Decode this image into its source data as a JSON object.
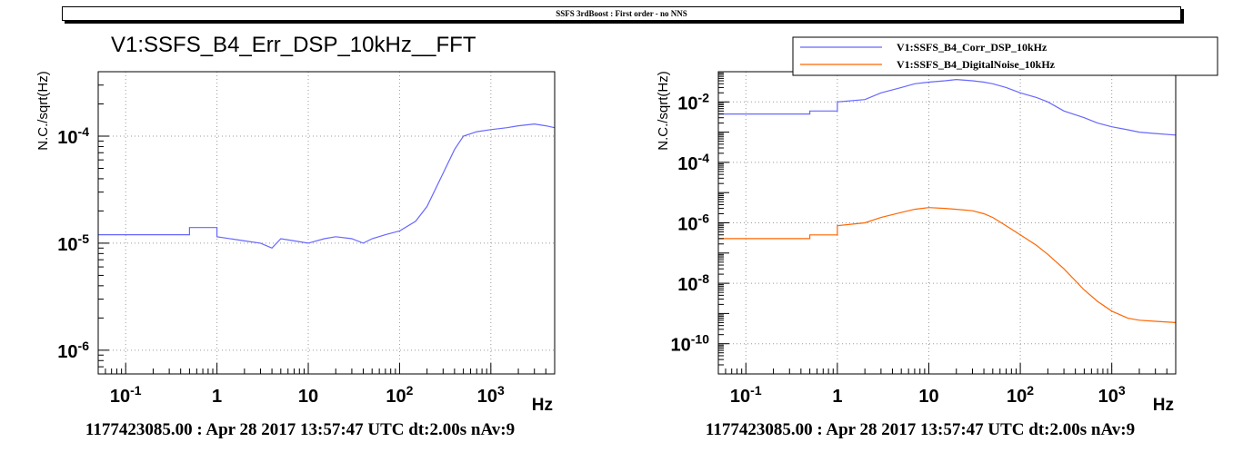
{
  "page": {
    "banner": "SSFS 3rdBoost : First order - no NNS"
  },
  "panels": [
    {
      "title": "V1:SSFS_B4_Err_DSP_10kHz__FFT",
      "footer": "1177423085.00 : Apr 28 2017 13:57:47 UTC dt:2.00s nAv:9"
    },
    {
      "title": "",
      "footer": "1177423085.00 : Apr 28 2017 13:57:47 UTC dt:2.00s nAv:9"
    }
  ],
  "colors": {
    "blue": "#6767ff",
    "orange": "#ff6600",
    "grid": "#9a9a9a"
  },
  "chart_data": [
    {
      "type": "line",
      "title": "V1:SSFS_B4_Err_DSP_10kHz__FFT",
      "xlabel": "Hz",
      "ylabel": "N.C./sqrt(Hz)",
      "x_scale": "log",
      "y_scale": "log",
      "xlim": [
        0.05,
        5000
      ],
      "ylim": [
        6e-07,
        0.0004
      ],
      "xticks": [
        "10^-1",
        "1",
        "10",
        "10^2",
        "10^3"
      ],
      "yticks": [
        "10^-6",
        "10^-5",
        "10^-4"
      ],
      "grid": true,
      "series": [
        {
          "name": "",
          "color": "#6767ff",
          "x": [
            0.05,
            0.5,
            0.5,
            1.0,
            1.0,
            2.0,
            3.0,
            4.0,
            5,
            7,
            10,
            15,
            20,
            30,
            40,
            50,
            70,
            100,
            150,
            200,
            300,
            400,
            500,
            700,
            1000,
            1500,
            2000,
            3000,
            4000,
            5000
          ],
          "y": [
            1.2e-05,
            1.2e-05,
            1.4e-05,
            1.4e-05,
            1.15e-05,
            1.05e-05,
            1e-05,
            9e-06,
            1.1e-05,
            1.05e-05,
            1e-05,
            1.1e-05,
            1.15e-05,
            1.1e-05,
            1e-05,
            1.1e-05,
            1.2e-05,
            1.3e-05,
            1.6e-05,
            2.2e-05,
            4.5e-05,
            7.5e-05,
            0.0001,
            0.00011,
            0.000115,
            0.00012,
            0.000125,
            0.00013,
            0.000125,
            0.00012
          ]
        }
      ]
    },
    {
      "type": "line",
      "title": "",
      "xlabel": "Hz",
      "ylabel": "N.C./sqrt(Hz)",
      "x_scale": "log",
      "y_scale": "log",
      "xlim": [
        0.05,
        5000
      ],
      "ylim": [
        1e-11,
        0.1
      ],
      "xticks": [
        "10^-1",
        "1",
        "10",
        "10^2",
        "10^3"
      ],
      "yticks": [
        "10^-10",
        "10^-8",
        "10^-6",
        "10^-4",
        "10^-2"
      ],
      "grid": true,
      "legend_position": "top-right",
      "series": [
        {
          "name": "V1:SSFS_B4_Corr_DSP_10kHz",
          "color": "#6767ff",
          "x": [
            0.05,
            0.5,
            0.5,
            1.0,
            1.0,
            2.0,
            3.0,
            5,
            7,
            10,
            15,
            20,
            30,
            40,
            50,
            70,
            100,
            150,
            200,
            300,
            500,
            700,
            1000,
            1500,
            2000,
            3000,
            5000
          ],
          "y": [
            0.004,
            0.004,
            0.005,
            0.005,
            0.01,
            0.012,
            0.02,
            0.03,
            0.04,
            0.045,
            0.05,
            0.055,
            0.05,
            0.045,
            0.04,
            0.03,
            0.02,
            0.014,
            0.01,
            0.005,
            0.003,
            0.002,
            0.0015,
            0.0012,
            0.001,
            0.0009,
            0.0008
          ]
        },
        {
          "name": "V1:SSFS_B4_DigitalNoise_10kHz",
          "color": "#ff6600",
          "x": [
            0.05,
            0.5,
            0.5,
            1.0,
            1.0,
            2.0,
            3.0,
            5,
            7,
            10,
            15,
            20,
            30,
            40,
            50,
            70,
            100,
            150,
            200,
            300,
            500,
            700,
            1000,
            1500,
            2000,
            3000,
            5000
          ],
          "y": [
            3e-07,
            3e-07,
            4e-07,
            4e-07,
            8e-07,
            1e-06,
            1.5e-06,
            2.2e-06,
            2.8e-06,
            3.2e-06,
            3e-06,
            2.8e-06,
            2.5e-06,
            2e-06,
            1.5e-06,
            8e-07,
            4e-07,
            1.8e-07,
            9e-08,
            3e-08,
            6e-09,
            2.5e-09,
            1.2e-09,
            7e-10,
            6e-10,
            5.5e-10,
            5e-10
          ]
        }
      ]
    }
  ]
}
